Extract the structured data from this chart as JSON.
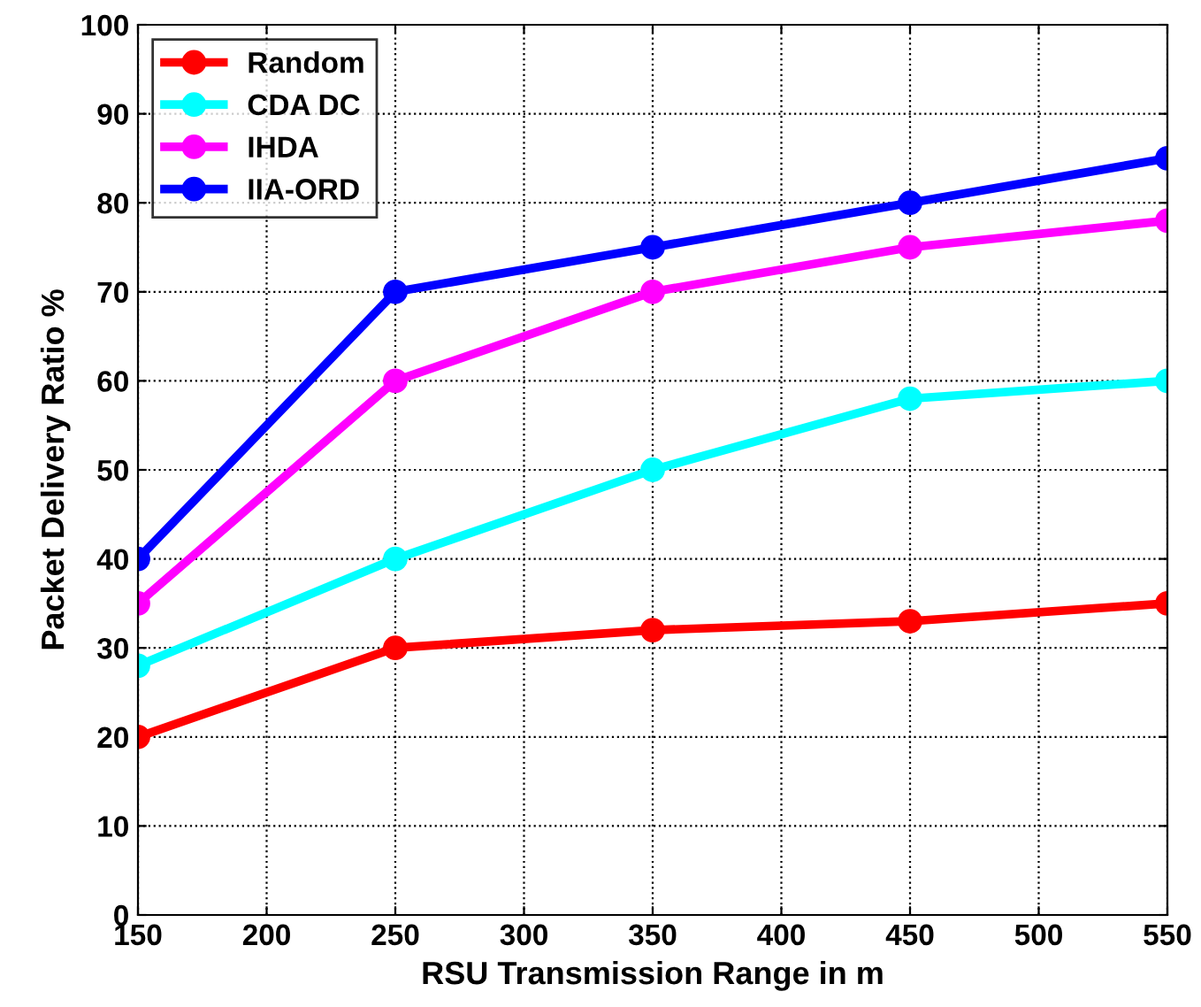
{
  "chart_data": {
    "type": "line",
    "xlabel": "RSU Transmission Range in m",
    "ylabel": "Packet Delivery Ratio %",
    "x": [
      150,
      250,
      350,
      450,
      550
    ],
    "series": [
      {
        "name": "Random",
        "color": "#ff0000",
        "values": [
          20,
          30,
          32,
          33,
          35
        ]
      },
      {
        "name": "CDA DC",
        "color": "#00ffff",
        "values": [
          28,
          40,
          50,
          58,
          60
        ]
      },
      {
        "name": "IHDA",
        "color": "#ff00ff",
        "values": [
          35,
          60,
          70,
          75,
          78
        ]
      },
      {
        "name": "IIA-ORD",
        "color": "#0000ff",
        "values": [
          40,
          70,
          75,
          80,
          85
        ]
      }
    ],
    "xlim": [
      150,
      550
    ],
    "ylim": [
      0,
      100
    ],
    "xticks": [
      150,
      200,
      250,
      300,
      350,
      400,
      450,
      500,
      550
    ],
    "yticks": [
      0,
      10,
      20,
      30,
      40,
      50,
      60,
      70,
      80,
      90,
      100
    ],
    "grid": true,
    "legend": "top left",
    "marker": "circle",
    "line_style": "solid"
  }
}
